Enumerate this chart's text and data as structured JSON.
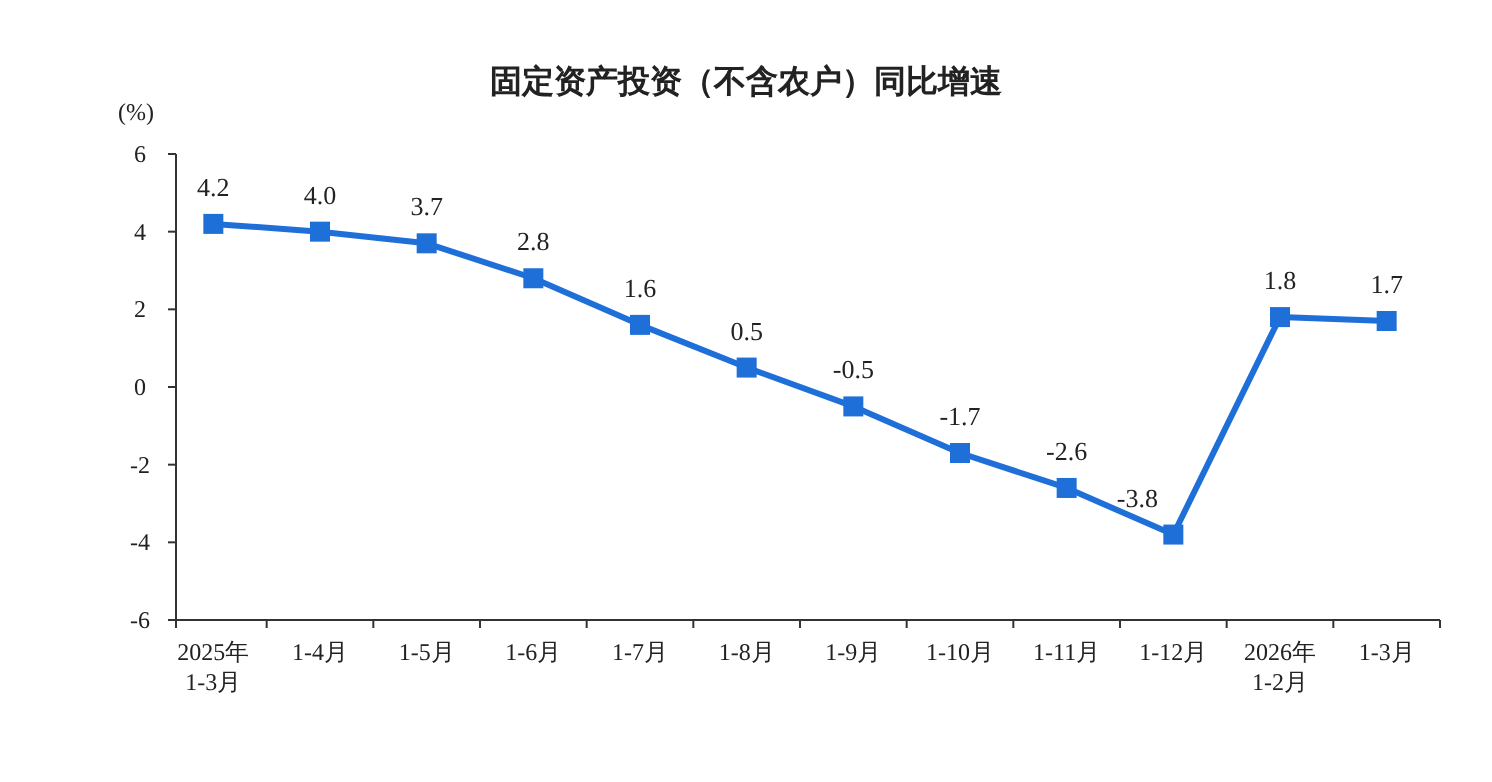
{
  "chart_data": {
    "type": "line",
    "title": "固定资产投资（不含农户）同比增速",
    "ylabel": "(%)",
    "categories": [
      "2025年\n1-3月",
      "1-4月",
      "1-5月",
      "1-6月",
      "1-7月",
      "1-8月",
      "1-9月",
      "1-10月",
      "1-11月",
      "1-12月",
      "2026年\n1-2月",
      "1-3月"
    ],
    "values": [
      4.2,
      4.0,
      3.7,
      2.8,
      1.6,
      0.5,
      -0.5,
      -1.7,
      -2.6,
      -3.8,
      1.8,
      1.7
    ],
    "value_labels": [
      "4.2",
      "4.0",
      "3.7",
      "2.8",
      "1.6",
      "0.5",
      "-0.5",
      "-1.7",
      "-2.6",
      "-3.8",
      "1.8",
      "1.7"
    ],
    "color": "#1f6fd8",
    "marker": "square",
    "line_style": "solid",
    "ylim": [
      -6,
      6
    ],
    "yticks": [
      -6,
      -4,
      -2,
      0,
      2,
      4,
      6
    ]
  }
}
